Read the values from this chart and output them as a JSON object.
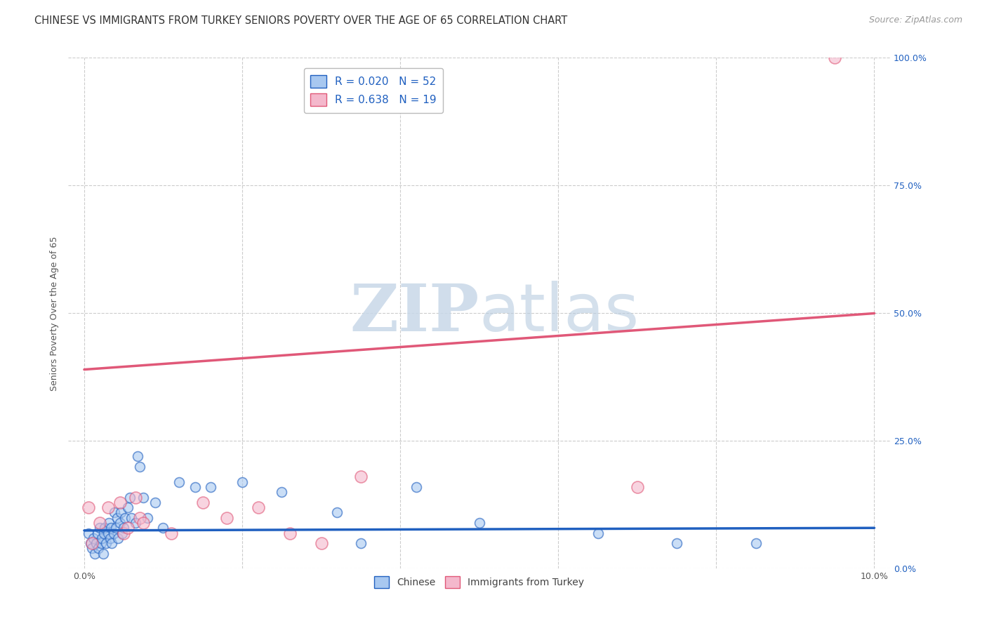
{
  "title": "CHINESE VS IMMIGRANTS FROM TURKEY SENIORS POVERTY OVER THE AGE OF 65 CORRELATION CHART",
  "source": "Source: ZipAtlas.com",
  "ylabel": "Seniors Poverty Over the Age of 65",
  "xlim": [
    0.0,
    10.0
  ],
  "ylim": [
    0.0,
    100.0
  ],
  "yticks": [
    0.0,
    25.0,
    50.0,
    75.0,
    100.0
  ],
  "right_ytick_labels": [
    "0.0%",
    "25.0%",
    "50.0%",
    "75.0%",
    "100.0%"
  ],
  "legend_r_chinese": "R = 0.020",
  "legend_n_chinese": "N = 52",
  "legend_r_turkey": "R = 0.638",
  "legend_n_turkey": "N = 19",
  "chinese_color": "#A8C8F0",
  "turkey_color": "#F4B8CC",
  "chinese_line_color": "#2060C0",
  "turkey_line_color": "#E05878",
  "watermark_zip": "ZIP",
  "watermark_atlas": "atlas",
  "background_color": "#ffffff",
  "chinese_x": [
    0.05,
    0.08,
    0.1,
    0.12,
    0.13,
    0.15,
    0.17,
    0.18,
    0.2,
    0.21,
    0.22,
    0.24,
    0.25,
    0.26,
    0.28,
    0.3,
    0.31,
    0.33,
    0.34,
    0.35,
    0.37,
    0.38,
    0.4,
    0.42,
    0.43,
    0.45,
    0.46,
    0.48,
    0.5,
    0.52,
    0.55,
    0.58,
    0.6,
    0.65,
    0.68,
    0.7,
    0.75,
    0.8,
    0.9,
    1.0,
    1.2,
    1.4,
    1.6,
    2.0,
    2.5,
    3.2,
    3.5,
    4.2,
    5.0,
    6.5,
    7.5,
    8.5
  ],
  "chinese_y": [
    7.0,
    5.0,
    4.0,
    6.0,
    3.0,
    5.0,
    7.0,
    4.0,
    8.0,
    5.0,
    6.0,
    3.0,
    7.0,
    8.0,
    5.0,
    7.0,
    9.0,
    6.0,
    8.0,
    5.0,
    7.0,
    11.0,
    8.0,
    10.0,
    6.0,
    9.0,
    11.0,
    7.0,
    8.0,
    10.0,
    12.0,
    14.0,
    10.0,
    9.0,
    22.0,
    20.0,
    14.0,
    10.0,
    13.0,
    8.0,
    17.0,
    16.0,
    16.0,
    17.0,
    15.0,
    11.0,
    5.0,
    16.0,
    9.0,
    7.0,
    5.0,
    5.0
  ],
  "turkey_x": [
    0.05,
    0.1,
    0.2,
    0.3,
    0.45,
    0.5,
    0.55,
    0.65,
    0.7,
    0.75,
    1.1,
    1.5,
    1.8,
    2.2,
    2.6,
    3.0,
    3.5,
    7.0,
    9.5
  ],
  "turkey_y": [
    12.0,
    5.0,
    9.0,
    12.0,
    13.0,
    7.0,
    8.0,
    14.0,
    10.0,
    9.0,
    7.0,
    13.0,
    10.0,
    12.0,
    7.0,
    5.0,
    18.0,
    16.0,
    100.0
  ],
  "chinese_line_x": [
    0.0,
    10.0
  ],
  "chinese_line_y": [
    7.5,
    8.0
  ],
  "turkey_line_x": [
    0.0,
    10.0
  ],
  "turkey_line_y": [
    39.0,
    50.0
  ],
  "chinese_scatter_size": 100,
  "turkey_scatter_size": 150,
  "gridline_color": "#cccccc",
  "gridline_style": "--",
  "title_fontsize": 10.5,
  "axis_label_fontsize": 9,
  "tick_fontsize": 9,
  "legend_fontsize": 11
}
